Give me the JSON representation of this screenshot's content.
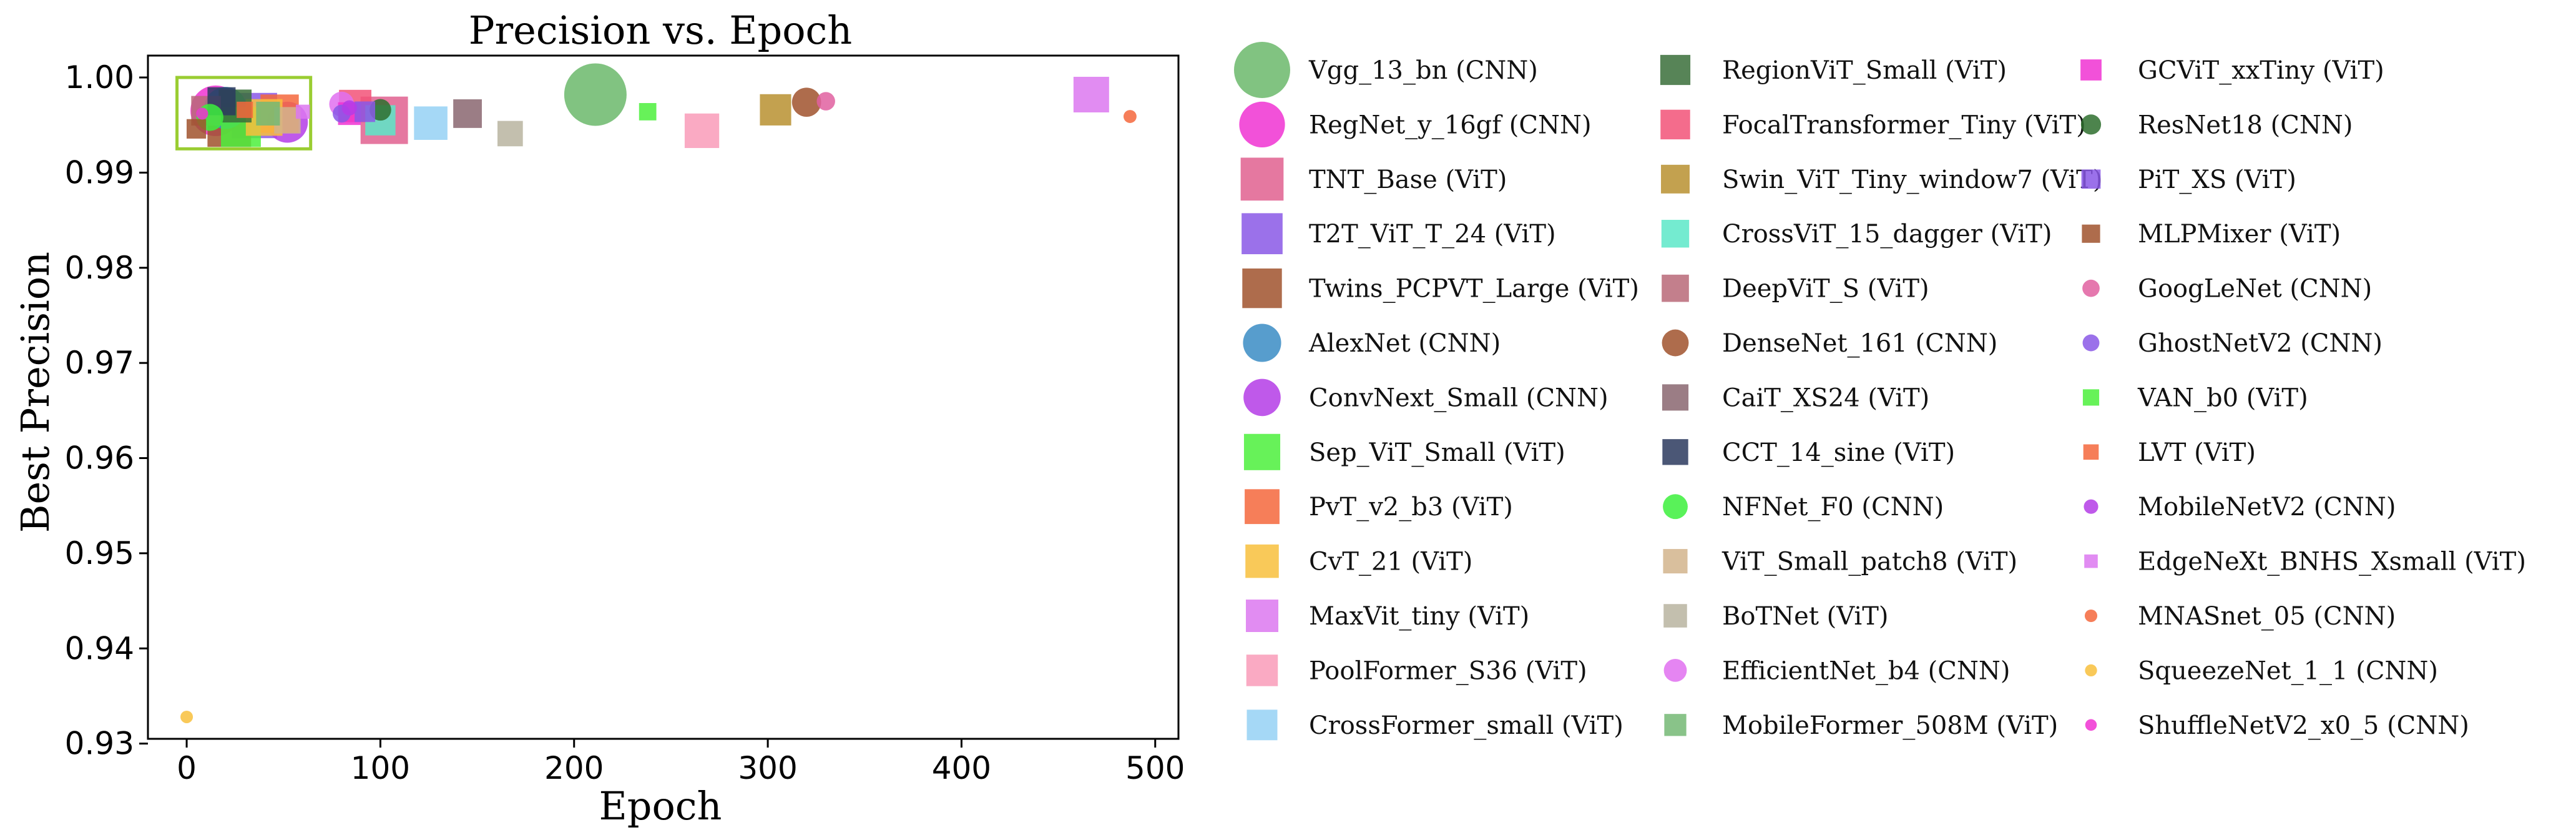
{
  "chart_data": {
    "type": "scatter",
    "title": "Precision vs. Epoch",
    "xlabel": "Epoch",
    "ylabel": "Best Precision",
    "xlim": [
      -20,
      512
    ],
    "ylim": [
      0.9305,
      1.0023
    ],
    "xticks": [
      0,
      100,
      200,
      300,
      400,
      500
    ],
    "xtick_labels": [
      "0",
      "100",
      "200",
      "300",
      "400",
      "500"
    ],
    "yticks": [
      0.93,
      0.94,
      0.95,
      0.96,
      0.97,
      0.98,
      0.99,
      1.0
    ],
    "ytick_labels": [
      "0.93",
      "0.94",
      "0.95",
      "0.96",
      "0.97",
      "0.98",
      "0.99",
      "1.00"
    ],
    "grid": false,
    "legend_placement": "outside-right",
    "highlight_box": {
      "x": [
        -5,
        64
      ],
      "y": [
        0.9925,
        1.0
      ],
      "color": "#9acd32"
    },
    "series": [
      {
        "name": "Vgg_13_bn (CNN)",
        "marker": "circle",
        "size": 1.0,
        "color": "#6bb86b",
        "x": 211,
        "y": 0.9982
      },
      {
        "name": "RegNet_y_16gf (CNN)",
        "marker": "circle",
        "size": 0.78,
        "color": "#f032d2",
        "x": 15,
        "y": 0.9965
      },
      {
        "name": "TNT_Base (ViT)",
        "marker": "square",
        "size": 0.72,
        "color": "#e0608f",
        "x": 102,
        "y": 0.9955
      },
      {
        "name": "T2T_ViT_T_24 (ViT)",
        "marker": "square",
        "size": 0.68,
        "color": "#8a58e6",
        "x": 35,
        "y": 0.996
      },
      {
        "name": "Twins_PCPVT_Large (ViT)",
        "marker": "square",
        "size": 0.65,
        "color": "#a0522d",
        "x": 22,
        "y": 0.995
      },
      {
        "name": "AlexNet (CNN)",
        "marker": "circle",
        "size": 0.62,
        "color": "#3a8cc4",
        "x": 20,
        "y": 0.9968
      },
      {
        "name": "ConvNext_Small (CNN)",
        "marker": "circle",
        "size": 0.6,
        "color": "#b43ce6",
        "x": 52,
        "y": 0.9953
      },
      {
        "name": "Sep_ViT_Small (ViT)",
        "marker": "square",
        "size": 0.58,
        "color": "#4cf03c",
        "x": 28,
        "y": 0.9948
      },
      {
        "name": "PvT_v2_b3 (ViT)",
        "marker": "square",
        "size": 0.55,
        "color": "#f4673c",
        "x": 48,
        "y": 0.9962
      },
      {
        "name": "CvT_21 (ViT)",
        "marker": "square",
        "size": 0.52,
        "color": "#f8c03c",
        "x": 40,
        "y": 0.9958
      },
      {
        "name": "MaxVit_tiny (ViT)",
        "marker": "square",
        "size": 0.5,
        "color": "#dc78f0",
        "x": 467,
        "y": 0.9982
      },
      {
        "name": "PoolFormer_S36 (ViT)",
        "marker": "square",
        "size": 0.48,
        "color": "#f99bb8",
        "x": 266,
        "y": 0.9944
      },
      {
        "name": "CrossFormer_small (ViT)",
        "marker": "square",
        "size": 0.46,
        "color": "#95d1f4",
        "x": 126,
        "y": 0.9952
      },
      {
        "name": "RegionViT_Small (ViT)",
        "marker": "square",
        "size": 0.45,
        "color": "#3a6e3a",
        "x": 25,
        "y": 0.997
      },
      {
        "name": "FocalTransformer_Tiny (ViT)",
        "marker": "square",
        "size": 0.44,
        "color": "#f25278",
        "x": 87,
        "y": 0.997
      },
      {
        "name": "Swin_ViT_Tiny_window7 (ViT)",
        "marker": "square",
        "size": 0.42,
        "color": "#b89030",
        "x": 304,
        "y": 0.9966
      },
      {
        "name": "CrossViT_15_dagger (ViT)",
        "marker": "square",
        "size": 0.4,
        "color": "#5ce8c8",
        "x": 100,
        "y": 0.9955
      },
      {
        "name": "DeepViT_S (ViT)",
        "marker": "square",
        "size": 0.39,
        "color": "#b86878",
        "x": 10,
        "y": 0.9965
      },
      {
        "name": "DenseNet_161 (CNN)",
        "marker": "circle",
        "size": 0.38,
        "color": "#a0522d",
        "x": 320,
        "y": 0.9974
      },
      {
        "name": "CaiT_XS24 (ViT)",
        "marker": "square",
        "size": 0.37,
        "color": "#8a6670",
        "x": 145,
        "y": 0.9962
      },
      {
        "name": "CCT_14_sine (ViT)",
        "marker": "square",
        "size": 0.36,
        "color": "#2c3a5e",
        "x": 18,
        "y": 0.9975
      },
      {
        "name": "NFNet_F0 (CNN)",
        "marker": "circle",
        "size": 0.34,
        "color": "#3cf03c",
        "x": 12,
        "y": 0.9958
      },
      {
        "name": "ViT_Small_patch8 (ViT)",
        "marker": "square",
        "size": 0.33,
        "color": "#d2b48c",
        "x": 52,
        "y": 0.9955
      },
      {
        "name": "BoTNet (ViT)",
        "marker": "square",
        "size": 0.31,
        "color": "#b8b4a0",
        "x": 167,
        "y": 0.9941
      },
      {
        "name": "EfficientNet_b4 (CNN)",
        "marker": "circle",
        "size": 0.3,
        "color": "#e070f0",
        "x": 80,
        "y": 0.9972
      },
      {
        "name": "MobileFormer_508M (ViT)",
        "marker": "square",
        "size": 0.28,
        "color": "#74b874",
        "x": 42,
        "y": 0.9962
      },
      {
        "name": "GCViT_xxTiny (ViT)",
        "marker": "square",
        "size": 0.26,
        "color": "#f032d2",
        "x": 84,
        "y": 0.9962
      },
      {
        "name": "ResNet18 (CNN)",
        "marker": "circle",
        "size": 0.24,
        "color": "#2e6e2e",
        "x": 100,
        "y": 0.9966
      },
      {
        "name": "PiT_XS (ViT)",
        "marker": "square",
        "size": 0.22,
        "color": "#8a58e6",
        "x": 92,
        "y": 0.9964
      },
      {
        "name": "MLPMixer (ViT)",
        "marker": "square",
        "size": 0.2,
        "color": "#a0522d",
        "x": 5,
        "y": 0.9946
      },
      {
        "name": "GoogLeNet (CNN)",
        "marker": "circle",
        "size": 0.18,
        "color": "#e060a0",
        "x": 330,
        "y": 0.9975
      },
      {
        "name": "GhostNetV2 (CNN)",
        "marker": "circle",
        "size": 0.17,
        "color": "#8a58e6",
        "x": 80,
        "y": 0.9962
      },
      {
        "name": "VAN_b0 (ViT)",
        "marker": "square",
        "size": 0.16,
        "color": "#4cf03c",
        "x": 238,
        "y": 0.9964
      },
      {
        "name": "LVT (ViT)",
        "marker": "square",
        "size": 0.14,
        "color": "#f4673c",
        "x": 30,
        "y": 0.9966
      },
      {
        "name": "MobileNetV2 (CNN)",
        "marker": "circle",
        "size": 0.12,
        "color": "#b43ce6",
        "x": 84,
        "y": 0.9968
      },
      {
        "name": "EdgeNeXt_BNHS_Xsmall (ViT)",
        "marker": "square",
        "size": 0.1,
        "color": "#dc78f0",
        "x": 60,
        "y": 0.9964
      },
      {
        "name": "MNASnet_05 (CNN)",
        "marker": "circle",
        "size": 0.08,
        "color": "#f4673c",
        "x": 487,
        "y": 0.9959
      },
      {
        "name": "SqueezeNet_1_1 (CNN)",
        "marker": "circle",
        "size": 0.07,
        "color": "#f8c03c",
        "x": 0,
        "y": 0.9328
      },
      {
        "name": "ShuffleNetV2_x0_5 (CNN)",
        "marker": "circle",
        "size": 0.06,
        "color": "#f032d2",
        "x": 8,
        "y": 0.9962
      }
    ]
  }
}
